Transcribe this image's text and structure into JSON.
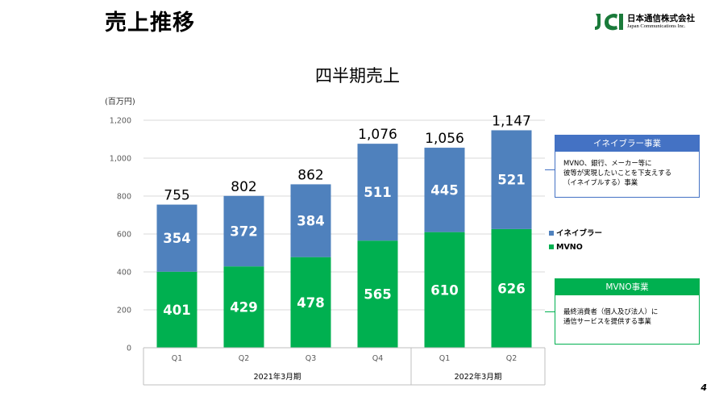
{
  "slide": {
    "title": "売上推移",
    "page_number": "4"
  },
  "company": {
    "name": "日本通信株式会社",
    "name_en": "Japan Communications Inc.",
    "logo_text": "JCI"
  },
  "chart_data": {
    "type": "bar",
    "stacked": true,
    "title": "四半期売上",
    "unit_label": "(百万円)",
    "categories": [
      "Q1",
      "Q2",
      "Q3",
      "Q4",
      "Q1",
      "Q2"
    ],
    "groups": [
      {
        "label": "2021年3月期",
        "categories": [
          "Q1",
          "Q2",
          "Q3",
          "Q4"
        ]
      },
      {
        "label": "2022年3月期",
        "categories": [
          "Q1",
          "Q2"
        ]
      }
    ],
    "series": [
      {
        "name": "MVNO",
        "color": "#00B050",
        "values": [
          401,
          429,
          478,
          565,
          610,
          626
        ]
      },
      {
        "name": "イネイブラー",
        "color": "#4F81BD",
        "values": [
          354,
          372,
          384,
          511,
          445,
          521
        ]
      }
    ],
    "totals": [
      "755",
      "802",
      "862",
      "1,076",
      "1,056",
      "1,147"
    ],
    "ylim": [
      0,
      1200
    ],
    "yticks": [
      0,
      200,
      400,
      600,
      800,
      1000,
      1200
    ],
    "ytick_labels": [
      "0",
      "200",
      "400",
      "600",
      "800",
      "1,000",
      "1,200"
    ],
    "grid": true,
    "legend_position": "right",
    "legend": [
      {
        "label": "イネイブラー",
        "color": "#4F81BD"
      },
      {
        "label": "MVNO",
        "color": "#00B050"
      }
    ]
  },
  "callouts": {
    "enabler": {
      "title": "イネイブラー事業",
      "color": "#4472C4",
      "lines": [
        "MVNO、銀行、メーカー等に",
        "彼等が実現したいことを下支えする",
        "（イネイブルする）事業"
      ]
    },
    "mvno": {
      "title": "MVNO事業",
      "color": "#00B050",
      "lines": [
        "最終消費者（個人及び法人）に",
        "通信サービスを提供する事業"
      ]
    }
  }
}
